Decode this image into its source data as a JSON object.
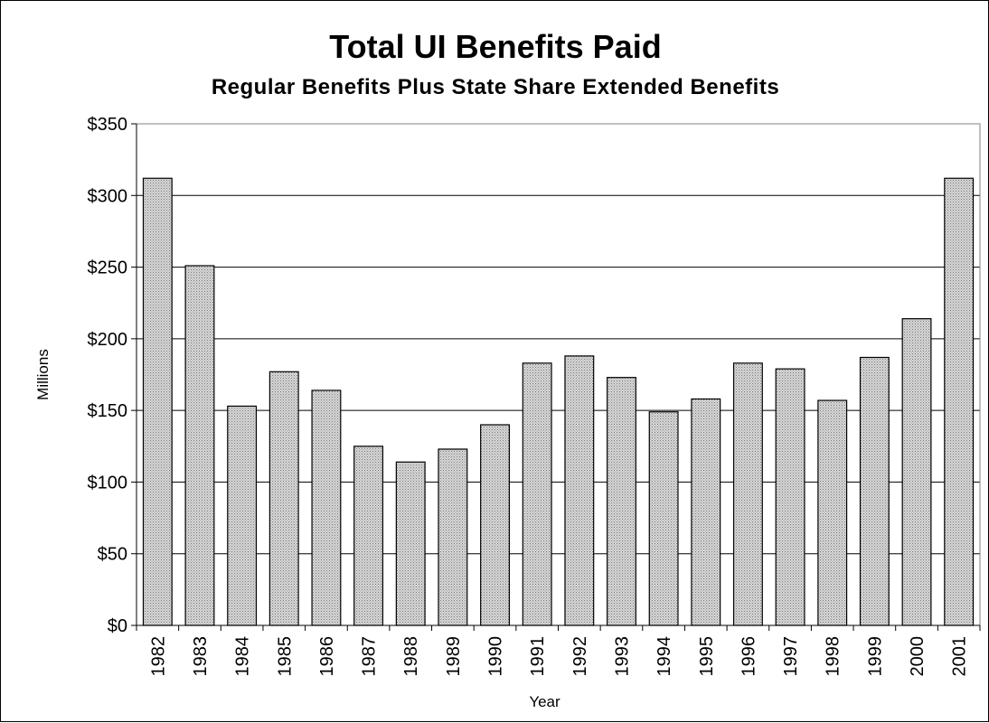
{
  "chart_data": {
    "type": "bar",
    "title": "Total UI Benefits Paid",
    "subtitle": "Regular Benefits Plus State Share Extended Benefits",
    "xlabel": "Year",
    "ylabel": "Millions",
    "categories": [
      "1982",
      "1983",
      "1984",
      "1985",
      "1986",
      "1987",
      "1988",
      "1989",
      "1990",
      "1991",
      "1992",
      "1993",
      "1994",
      "1995",
      "1996",
      "1997",
      "1998",
      "1999",
      "2000",
      "2001"
    ],
    "values": [
      312,
      251,
      153,
      177,
      164,
      125,
      114,
      123,
      140,
      183,
      188,
      173,
      149,
      158,
      183,
      179,
      157,
      187,
      214,
      312
    ],
    "ylim": [
      0,
      350
    ],
    "yticks": [
      0,
      50,
      100,
      150,
      200,
      250,
      300,
      350
    ],
    "ytick_labels": [
      "$0",
      "$50",
      "$100",
      "$150",
      "$200",
      "$250",
      "$300",
      "$350"
    ],
    "grid": "horizontal",
    "legend": "none",
    "colors": {
      "bar_fill": "#c8c8c8",
      "bar_stroke": "#000000",
      "grid": "#000000"
    }
  }
}
